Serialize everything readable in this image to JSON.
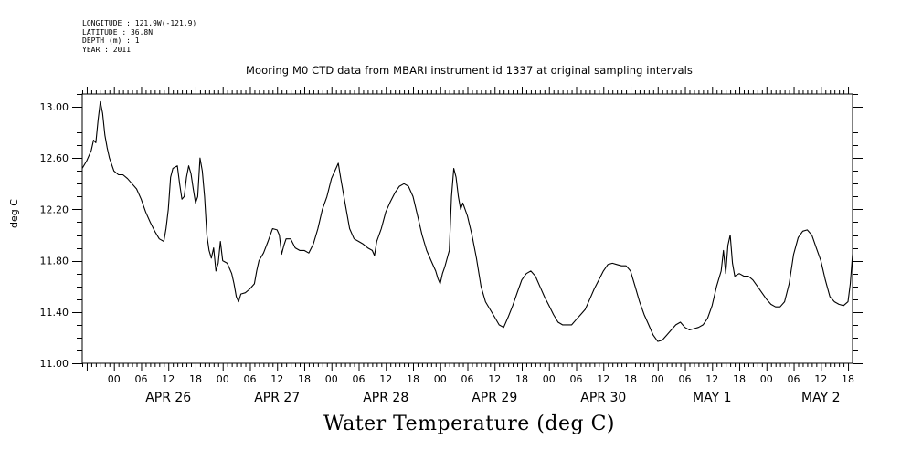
{
  "meta": {
    "longitude": "LONGITUDE : 121.9W(-121.9)",
    "latitude": "LATITUDE : 36.8N",
    "depth": "DEPTH (m) : 1",
    "year": "YEAR : 2011"
  },
  "chart_data": {
    "type": "line",
    "title": "Mooring M0 CTD data from MBARI instrument id 1337 at original sampling intervals",
    "ylabel": "deg C",
    "xlabel": "Water Temperature (deg C)",
    "ylim": [
      11.0,
      13.1
    ],
    "yticks": [
      "11.00",
      "11.40",
      "11.80",
      "12.20",
      "12.60",
      "13.00"
    ],
    "xlim_hours": [
      -7,
      163
    ],
    "hour_tick_labels": [
      "00",
      "06",
      "12",
      "18",
      "00",
      "06",
      "12",
      "18",
      "00",
      "06",
      "12",
      "18",
      "00",
      "06",
      "12",
      "18",
      "00",
      "06",
      "12",
      "18",
      "00",
      "06",
      "12",
      "18",
      "00",
      "06",
      "12",
      "18"
    ],
    "date_labels": [
      "APR 26",
      "APR 27",
      "APR 28",
      "APR 29",
      "APR 30",
      "MAY  1",
      "MAY  2"
    ],
    "grid": false,
    "series": [
      {
        "points": [
          [
            -7,
            12.52
          ],
          [
            -6,
            12.58
          ],
          [
            -5,
            12.66
          ],
          [
            -4.5,
            12.74
          ],
          [
            -4,
            12.72
          ],
          [
            -3.5,
            12.9
          ],
          [
            -3,
            13.04
          ],
          [
            -2.5,
            12.95
          ],
          [
            -2,
            12.78
          ],
          [
            -1.5,
            12.68
          ],
          [
            -1,
            12.6
          ],
          [
            0,
            12.5
          ],
          [
            1,
            12.47
          ],
          [
            2,
            12.47
          ],
          [
            3,
            12.44
          ],
          [
            4,
            12.4
          ],
          [
            5,
            12.36
          ],
          [
            6,
            12.28
          ],
          [
            7,
            12.18
          ],
          [
            8,
            12.1
          ],
          [
            9,
            12.03
          ],
          [
            10,
            11.97
          ],
          [
            11,
            11.95
          ],
          [
            11.5,
            12.05
          ],
          [
            12,
            12.2
          ],
          [
            12.5,
            12.45
          ],
          [
            13,
            12.52
          ],
          [
            14,
            12.54
          ],
          [
            14.5,
            12.4
          ],
          [
            15,
            12.28
          ],
          [
            15.5,
            12.3
          ],
          [
            16,
            12.45
          ],
          [
            16.5,
            12.54
          ],
          [
            17,
            12.48
          ],
          [
            17.5,
            12.36
          ],
          [
            18,
            12.25
          ],
          [
            18.5,
            12.3
          ],
          [
            19,
            12.6
          ],
          [
            19.5,
            12.5
          ],
          [
            20,
            12.3
          ],
          [
            20.5,
            12.0
          ],
          [
            21,
            11.88
          ],
          [
            21.5,
            11.82
          ],
          [
            22,
            11.9
          ],
          [
            22.5,
            11.72
          ],
          [
            23,
            11.78
          ],
          [
            23.5,
            11.95
          ],
          [
            24,
            11.8
          ],
          [
            25,
            11.78
          ],
          [
            26,
            11.7
          ],
          [
            26.5,
            11.62
          ],
          [
            27,
            11.52
          ],
          [
            27.5,
            11.48
          ],
          [
            28,
            11.54
          ],
          [
            29,
            11.55
          ],
          [
            30,
            11.58
          ],
          [
            31,
            11.62
          ],
          [
            31.5,
            11.72
          ],
          [
            32,
            11.8
          ],
          [
            33,
            11.86
          ],
          [
            34,
            11.95
          ],
          [
            35,
            12.05
          ],
          [
            36,
            12.04
          ],
          [
            36.5,
            12.0
          ],
          [
            37,
            11.85
          ],
          [
            37.5,
            11.92
          ],
          [
            38,
            11.97
          ],
          [
            39,
            11.97
          ],
          [
            40,
            11.9
          ],
          [
            41,
            11.88
          ],
          [
            42,
            11.88
          ],
          [
            43,
            11.86
          ],
          [
            44,
            11.93
          ],
          [
            45,
            12.05
          ],
          [
            46,
            12.2
          ],
          [
            47,
            12.3
          ],
          [
            48,
            12.44
          ],
          [
            49,
            12.52
          ],
          [
            49.5,
            12.56
          ],
          [
            50,
            12.45
          ],
          [
            51,
            12.25
          ],
          [
            52,
            12.05
          ],
          [
            53,
            11.97
          ],
          [
            54,
            11.95
          ],
          [
            55,
            11.93
          ],
          [
            56,
            11.9
          ],
          [
            57,
            11.88
          ],
          [
            57.5,
            11.84
          ],
          [
            58,
            11.95
          ],
          [
            59,
            12.05
          ],
          [
            60,
            12.18
          ],
          [
            61,
            12.26
          ],
          [
            62,
            12.33
          ],
          [
            63,
            12.38
          ],
          [
            64,
            12.4
          ],
          [
            65,
            12.38
          ],
          [
            66,
            12.3
          ],
          [
            67,
            12.15
          ],
          [
            68,
            12.0
          ],
          [
            69,
            11.88
          ],
          [
            70,
            11.8
          ],
          [
            71,
            11.72
          ],
          [
            71.5,
            11.66
          ],
          [
            72,
            11.62
          ],
          [
            72.5,
            11.7
          ],
          [
            73,
            11.75
          ],
          [
            74,
            11.88
          ],
          [
            74.5,
            12.3
          ],
          [
            75,
            12.52
          ],
          [
            75.5,
            12.45
          ],
          [
            76,
            12.3
          ],
          [
            76.5,
            12.2
          ],
          [
            77,
            12.25
          ],
          [
            78,
            12.15
          ],
          [
            79,
            12.0
          ],
          [
            80,
            11.82
          ],
          [
            81,
            11.6
          ],
          [
            82,
            11.48
          ],
          [
            83,
            11.42
          ],
          [
            84,
            11.36
          ],
          [
            85,
            11.3
          ],
          [
            86,
            11.28
          ],
          [
            87,
            11.36
          ],
          [
            88,
            11.45
          ],
          [
            89,
            11.55
          ],
          [
            90,
            11.65
          ],
          [
            91,
            11.7
          ],
          [
            92,
            11.72
          ],
          [
            93,
            11.68
          ],
          [
            94,
            11.6
          ],
          [
            95,
            11.52
          ],
          [
            96,
            11.45
          ],
          [
            97,
            11.38
          ],
          [
            98,
            11.32
          ],
          [
            99,
            11.3
          ],
          [
            100,
            11.3
          ],
          [
            101,
            11.3
          ],
          [
            102,
            11.34
          ],
          [
            103,
            11.38
          ],
          [
            104,
            11.42
          ],
          [
            105,
            11.5
          ],
          [
            106,
            11.58
          ],
          [
            107,
            11.65
          ],
          [
            108,
            11.72
          ],
          [
            109,
            11.77
          ],
          [
            110,
            11.78
          ],
          [
            111,
            11.77
          ],
          [
            112,
            11.76
          ],
          [
            113,
            11.76
          ],
          [
            114,
            11.72
          ],
          [
            115,
            11.6
          ],
          [
            116,
            11.48
          ],
          [
            117,
            11.38
          ],
          [
            118,
            11.3
          ],
          [
            119,
            11.22
          ],
          [
            120,
            11.17
          ],
          [
            121,
            11.18
          ],
          [
            122,
            11.22
          ],
          [
            123,
            11.26
          ],
          [
            124,
            11.3
          ],
          [
            125,
            11.32
          ],
          [
            126,
            11.28
          ],
          [
            127,
            11.26
          ],
          [
            128,
            11.27
          ],
          [
            129,
            11.28
          ],
          [
            130,
            11.3
          ],
          [
            131,
            11.35
          ],
          [
            132,
            11.45
          ],
          [
            133,
            11.6
          ],
          [
            134,
            11.72
          ],
          [
            134.5,
            11.88
          ],
          [
            135,
            11.7
          ],
          [
            135.5,
            11.92
          ],
          [
            136,
            12.0
          ],
          [
            136.5,
            11.78
          ],
          [
            137,
            11.68
          ],
          [
            138,
            11.7
          ],
          [
            139,
            11.68
          ],
          [
            140,
            11.68
          ],
          [
            141,
            11.65
          ],
          [
            142,
            11.6
          ],
          [
            143,
            11.55
          ],
          [
            144,
            11.5
          ],
          [
            145,
            11.46
          ],
          [
            146,
            11.44
          ],
          [
            147,
            11.44
          ],
          [
            148,
            11.48
          ],
          [
            149,
            11.62
          ],
          [
            150,
            11.85
          ],
          [
            151,
            11.98
          ],
          [
            152,
            12.03
          ],
          [
            153,
            12.04
          ],
          [
            154,
            12.0
          ],
          [
            155,
            11.9
          ],
          [
            156,
            11.8
          ],
          [
            157,
            11.65
          ],
          [
            158,
            11.52
          ],
          [
            159,
            11.48
          ],
          [
            160,
            11.46
          ],
          [
            161,
            11.45
          ],
          [
            162,
            11.48
          ],
          [
            162.5,
            11.62
          ],
          [
            163,
            11.85
          ]
        ]
      }
    ]
  }
}
